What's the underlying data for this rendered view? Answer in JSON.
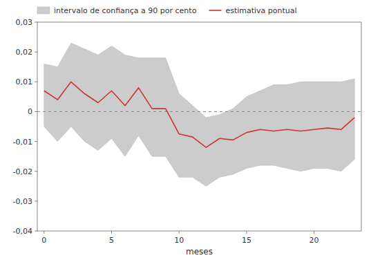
{
  "chart_data": {
    "type": "line",
    "xlabel": "meses",
    "x": [
      0,
      1,
      2,
      3,
      4,
      5,
      6,
      7,
      8,
      9,
      10,
      11,
      12,
      13,
      14,
      15,
      16,
      17,
      18,
      19,
      20,
      21,
      22,
      23
    ],
    "series": [
      {
        "name": "intervalo de confiança a 90 por cento",
        "type": "area",
        "color": "#cccccc",
        "upper": [
          0.016,
          0.015,
          0.023,
          0.021,
          0.019,
          0.022,
          0.019,
          0.018,
          0.018,
          0.018,
          0.006,
          0.002,
          -0.002,
          -0.001,
          0.001,
          0.005,
          0.007,
          0.009,
          0.009,
          0.01,
          0.01,
          0.01,
          0.01,
          0.011
        ],
        "lower": [
          -0.005,
          -0.01,
          -0.005,
          -0.01,
          -0.013,
          -0.009,
          -0.015,
          -0.008,
          -0.015,
          -0.015,
          -0.022,
          -0.022,
          -0.025,
          -0.022,
          -0.021,
          -0.019,
          -0.018,
          -0.018,
          -0.019,
          -0.02,
          -0.019,
          -0.019,
          -0.02,
          -0.016
        ]
      },
      {
        "name": "estimativa pontual",
        "type": "line",
        "color": "#cc3333",
        "values": [
          0.007,
          0.004,
          0.01,
          0.006,
          0.003,
          0.007,
          0.002,
          0.008,
          0.001,
          0.001,
          -0.0075,
          -0.0085,
          -0.012,
          -0.009,
          -0.0095,
          -0.007,
          -0.006,
          -0.0065,
          -0.006,
          -0.0065,
          -0.006,
          -0.0055,
          -0.006,
          -0.002
        ]
      }
    ],
    "reference_line": {
      "value": 0,
      "color": "#888888",
      "line_style": "dashed"
    },
    "xlim": [
      -0.5,
      23.5
    ],
    "ylim": [
      -0.04,
      0.03
    ],
    "xticks": [
      0,
      5,
      10,
      15,
      20
    ],
    "yticks": [
      {
        "value": -0.04,
        "label": "-0,04"
      },
      {
        "value": -0.03,
        "label": "-0,03"
      },
      {
        "value": -0.02,
        "label": "-0,02"
      },
      {
        "value": -0.01,
        "label": "-0,01"
      },
      0,
      {
        "value": 0.01,
        "label": "0,01"
      },
      {
        "value": 0.02,
        "label": "0,02"
      },
      {
        "value": 0.03,
        "label": "0,03"
      }
    ],
    "grid": false,
    "legend": "upper left"
  }
}
